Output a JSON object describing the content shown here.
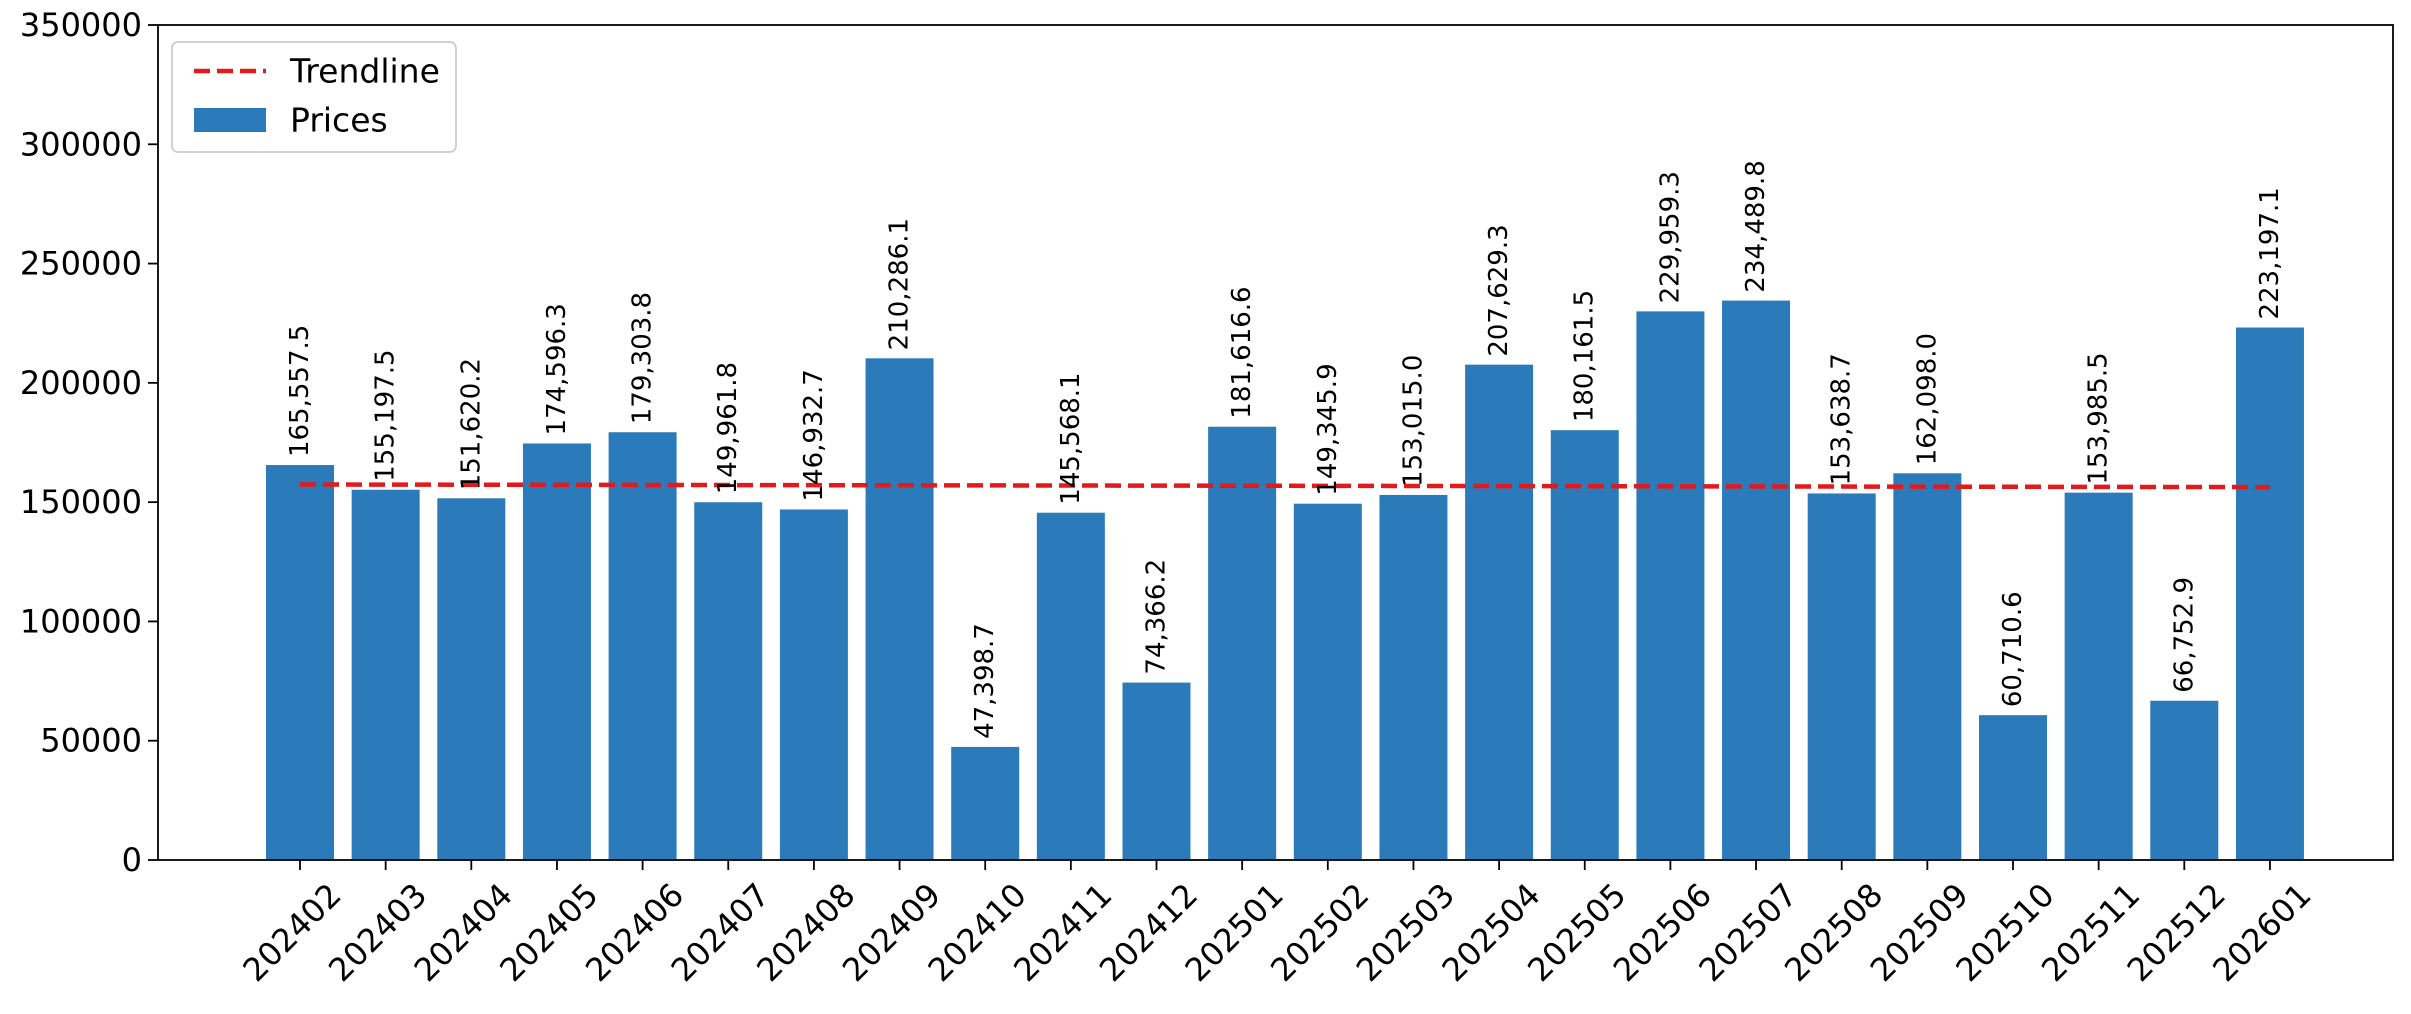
{
  "chart_data": {
    "type": "bar",
    "title": "",
    "xlabel": "",
    "ylabel": "",
    "categories": [
      "202402",
      "202403",
      "202404",
      "202405",
      "202406",
      "202407",
      "202408",
      "202409",
      "202410",
      "202411",
      "202412",
      "202501",
      "202502",
      "202503",
      "202504",
      "202505",
      "202506",
      "202507",
      "202508",
      "202509",
      "202510",
      "202511",
      "202512",
      "202601"
    ],
    "series": [
      {
        "name": "Prices",
        "type": "bar",
        "color": "#2b7bba",
        "values": [
          165557.5,
          155197.5,
          151620.2,
          174596.3,
          179303.8,
          149961.8,
          146932.7,
          210286.1,
          47398.7,
          145568.1,
          74366.2,
          181616.6,
          149345.9,
          153015.0,
          207629.3,
          180161.5,
          229959.3,
          234489.8,
          153638.7,
          162098.0,
          60710.6,
          153985.5,
          66752.9,
          223197.1
        ],
        "value_labels": [
          "165,557.5",
          "155,197.5",
          "151,620.2",
          "174,596.3",
          "179,303.8",
          "149,961.8",
          "146,932.7",
          "210,286.1",
          "47,398.7",
          "145,568.1",
          "74,366.2",
          "181,616.6",
          "149,345.9",
          "153,015.0",
          "207,629.3",
          "180,161.5",
          "229,959.3",
          "234,489.8",
          "153,638.7",
          "162,098.0",
          "60,710.6",
          "153,985.5",
          "66,752.9",
          "223,197.1"
        ]
      },
      {
        "name": "Trendline",
        "type": "line",
        "style": "dashed",
        "color": "#e31a1c",
        "start": 157400,
        "end": 156300
      }
    ],
    "ylim": [
      0,
      350000
    ],
    "yticks": [
      0,
      50000,
      100000,
      150000,
      200000,
      250000,
      300000,
      350000
    ],
    "ytick_labels": [
      "0",
      "50000",
      "100000",
      "150000",
      "200000",
      "250000",
      "300000",
      "350000"
    ],
    "xtick_rotation": 45,
    "value_label_rotation": 90,
    "grid": false,
    "legend": {
      "position": "top-left",
      "entries": [
        {
          "label": "Trendline",
          "kind": "dashed-line",
          "color": "#e31a1c"
        },
        {
          "label": "Prices",
          "kind": "patch",
          "color": "#2b7bba"
        }
      ]
    }
  }
}
